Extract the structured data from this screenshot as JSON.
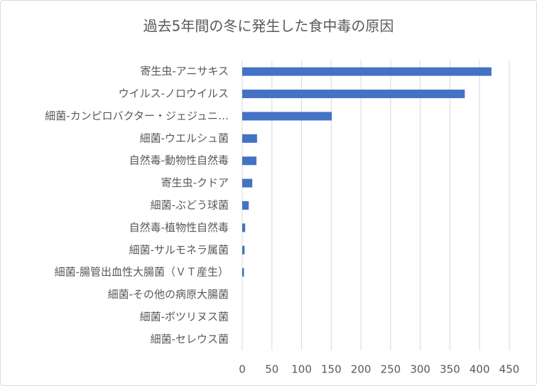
{
  "chart_data": {
    "type": "barh",
    "title": "過去5年間の冬に発生した食中毒の原因",
    "categories": [
      "寄生虫-アニサキス",
      "ウイルス-ノロウイルス",
      "細菌-カンピロバクター・ジェジュニ…",
      "細菌-ウエルシュ菌",
      "自然毒-動物性自然毒",
      "寄生虫-クドア",
      "細菌-ぶどう球菌",
      "自然毒-植物性自然毒",
      "細菌-サルモネラ属菌",
      "細菌-腸管出血性大腸菌（ＶＴ産生）",
      "細菌-その他の病原大腸菌",
      "細菌-ボツリヌス菌",
      "細菌-セレウス菌"
    ],
    "values": [
      420,
      375,
      151,
      25,
      24,
      17,
      11,
      5,
      4,
      3,
      0,
      0,
      0
    ],
    "color": "#4472c4",
    "xlim": [
      0,
      450
    ],
    "xticks": [
      0,
      50,
      100,
      150,
      200,
      250,
      300,
      350,
      400,
      450
    ],
    "grid": true
  }
}
